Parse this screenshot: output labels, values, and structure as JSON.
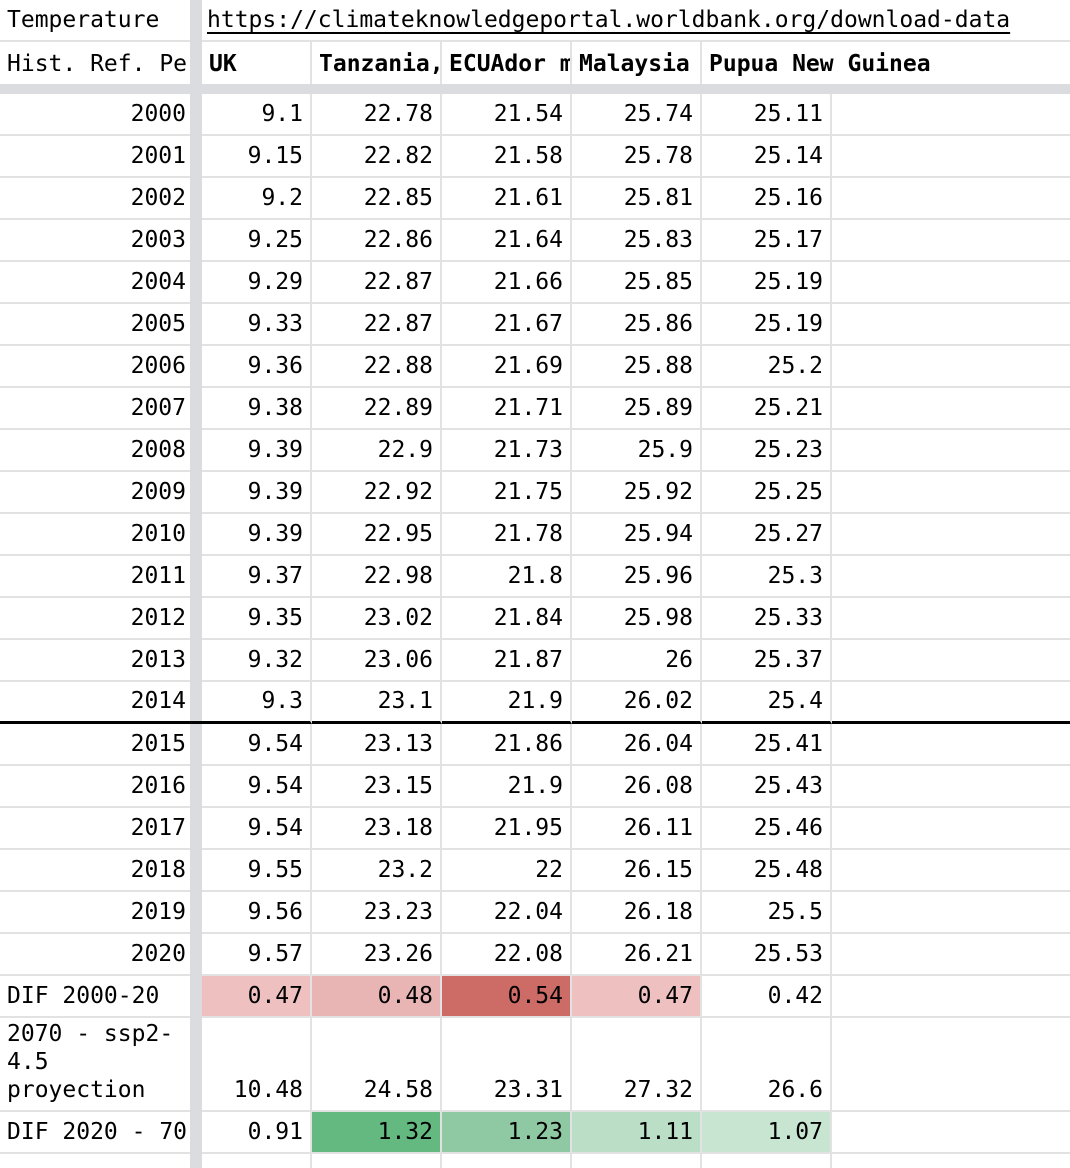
{
  "header": {
    "row1_label": "Temperature",
    "link_url": "https://climateknowledgeportal.worldbank.org/download-data",
    "row2_label": "Hist. Ref. Pe",
    "columns": [
      "UK",
      "Tanzania,",
      "ECUAdor m",
      "Malaysia",
      "Pupua New Guinea"
    ]
  },
  "body_rows": [
    {
      "label": "2000",
      "values": [
        9.1,
        22.78,
        21.54,
        25.74,
        25.11
      ]
    },
    {
      "label": "2001",
      "values": [
        9.15,
        22.82,
        21.58,
        25.78,
        25.14
      ]
    },
    {
      "label": "2002",
      "values": [
        9.2,
        22.85,
        21.61,
        25.81,
        25.16
      ]
    },
    {
      "label": "2003",
      "values": [
        9.25,
        22.86,
        21.64,
        25.83,
        25.17
      ]
    },
    {
      "label": "2004",
      "values": [
        9.29,
        22.87,
        21.66,
        25.85,
        25.19
      ]
    },
    {
      "label": "2005",
      "values": [
        9.33,
        22.87,
        21.67,
        25.86,
        25.19
      ]
    },
    {
      "label": "2006",
      "values": [
        9.36,
        22.88,
        21.69,
        25.88,
        25.2
      ]
    },
    {
      "label": "2007",
      "values": [
        9.38,
        22.89,
        21.71,
        25.89,
        25.21
      ]
    },
    {
      "label": "2008",
      "values": [
        9.39,
        22.9,
        21.73,
        25.9,
        25.23
      ]
    },
    {
      "label": "2009",
      "values": [
        9.39,
        22.92,
        21.75,
        25.92,
        25.25
      ]
    },
    {
      "label": "2010",
      "values": [
        9.39,
        22.95,
        21.78,
        25.94,
        25.27
      ]
    },
    {
      "label": "2011",
      "values": [
        9.37,
        22.98,
        21.8,
        25.96,
        25.3
      ]
    },
    {
      "label": "2012",
      "values": [
        9.35,
        23.02,
        21.84,
        25.98,
        25.33
      ]
    },
    {
      "label": "2013",
      "values": [
        9.32,
        23.06,
        21.87,
        26,
        25.37
      ]
    },
    {
      "label": "2014",
      "values": [
        9.3,
        23.1,
        21.9,
        26.02,
        25.4
      ],
      "thick_border_below": true
    },
    {
      "label": "2015",
      "values": [
        9.54,
        23.13,
        21.86,
        26.04,
        25.41
      ]
    },
    {
      "label": "2016",
      "values": [
        9.54,
        23.15,
        21.9,
        26.08,
        25.43
      ]
    },
    {
      "label": "2017",
      "values": [
        9.54,
        23.18,
        21.95,
        26.11,
        25.46
      ]
    },
    {
      "label": "2018",
      "values": [
        9.55,
        23.2,
        22,
        26.15,
        25.48
      ]
    },
    {
      "label": "2019",
      "values": [
        9.56,
        23.23,
        22.04,
        26.18,
        25.5
      ]
    },
    {
      "label": "2020",
      "values": [
        9.57,
        23.26,
        22.08,
        26.21,
        25.53
      ]
    },
    {
      "label": "DIF 2000-20",
      "values": [
        0.47,
        0.48,
        0.54,
        0.47,
        0.42
      ],
      "cell_colors": [
        "#eec0c0",
        "#e9b4b4",
        "#cd6b66",
        "#eec0c0",
        null
      ]
    },
    {
      "label": "2070 - ssp2-4.5 proyection",
      "values": [
        10.48,
        24.58,
        23.31,
        27.32,
        26.6
      ],
      "tall": true
    },
    {
      "label": "DIF 2020 - 70",
      "values": [
        0.91,
        1.32,
        1.23,
        1.11,
        1.07
      ],
      "cell_colors": [
        null,
        "#63b97f",
        "#8fc9a3",
        "#badec6",
        "#c8e5d1"
      ]
    }
  ],
  "styles": {
    "gridline_color": "#e2e2e2",
    "frozen_divider_color": "#dadce0",
    "thick_border_color": "#000000",
    "text_color": "#000000",
    "heat_red_max": "#cd6b66",
    "heat_green_max": "#63b97f",
    "heat_min": "#ffffff"
  }
}
